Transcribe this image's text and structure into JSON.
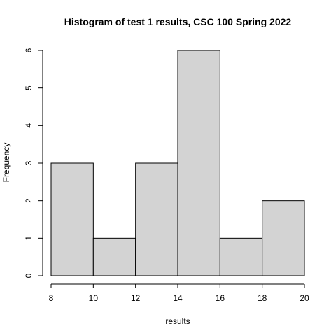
{
  "chart_data": {
    "type": "bar",
    "title": "Histogram of test 1 results, CSC 100 Spring 2022",
    "xlabel": "results",
    "ylabel": "Frequency",
    "bins": [
      {
        "start": 8,
        "end": 10,
        "count": 3
      },
      {
        "start": 10,
        "end": 12,
        "count": 1
      },
      {
        "start": 12,
        "end": 14,
        "count": 3
      },
      {
        "start": 14,
        "end": 16,
        "count": 6
      },
      {
        "start": 16,
        "end": 18,
        "count": 1
      },
      {
        "start": 18,
        "end": 20,
        "count": 2
      }
    ],
    "xlim": [
      8,
      20
    ],
    "ylim": [
      0,
      6
    ],
    "x_ticks": [
      8,
      10,
      12,
      14,
      16,
      18,
      20
    ],
    "y_ticks": [
      0,
      1,
      2,
      3,
      4,
      5,
      6
    ],
    "bar_fill": "#d3d3d3",
    "bar_stroke": "#000000",
    "grid": false
  }
}
